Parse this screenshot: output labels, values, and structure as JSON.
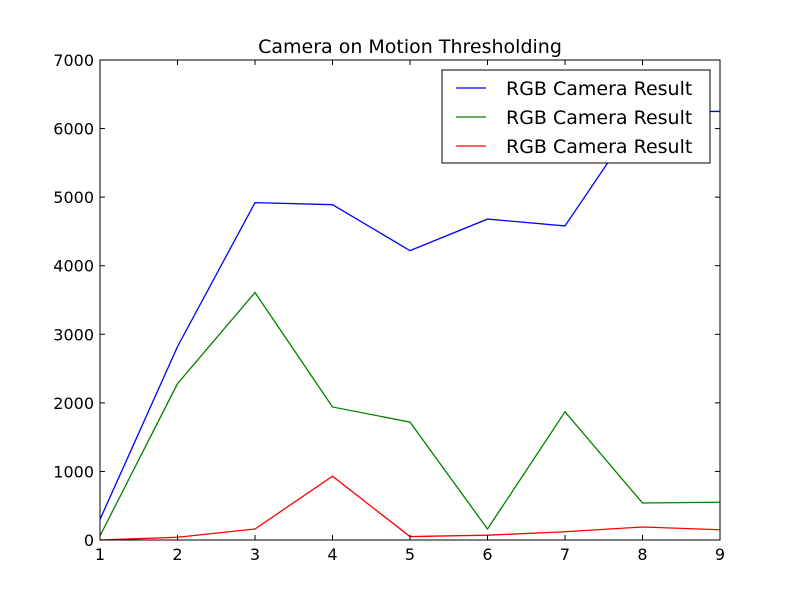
{
  "chart_data": {
    "type": "line",
    "title": "Camera on Motion Thresholding",
    "xlabel": "",
    "ylabel": "",
    "x": [
      1,
      2,
      3,
      4,
      5,
      6,
      7,
      8,
      9
    ],
    "xlim": [
      1,
      9
    ],
    "ylim": [
      0,
      7000
    ],
    "xticks": [
      "1",
      "2",
      "3",
      "4",
      "5",
      "6",
      "7",
      "8",
      "9"
    ],
    "yticks": [
      "0",
      "1000",
      "2000",
      "3000",
      "4000",
      "5000",
      "6000",
      "7000"
    ],
    "grid": false,
    "legend_position": "top-right",
    "series": [
      {
        "name": "RGB Camera Result",
        "color": "#0000ff",
        "values": [
          300,
          2820,
          4920,
          4890,
          4220,
          4680,
          4580,
          6250,
          6250
        ]
      },
      {
        "name": "RGB Camera Result",
        "color": "#008000",
        "values": [
          60,
          2280,
          3610,
          1940,
          1720,
          160,
          1870,
          540,
          550
        ]
      },
      {
        "name": "RGB Camera Result",
        "color": "#ff0000",
        "values": [
          0,
          40,
          160,
          930,
          50,
          70,
          120,
          190,
          150
        ]
      }
    ]
  }
}
